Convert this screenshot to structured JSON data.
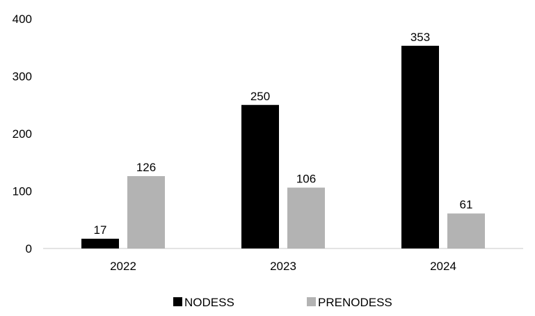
{
  "chart_data": {
    "type": "bar",
    "categories": [
      "2022",
      "2023",
      "2024"
    ],
    "series": [
      {
        "name": "NODESS",
        "values": [
          17,
          250,
          353
        ],
        "color": "#000000"
      },
      {
        "name": "PRENODESS",
        "values": [
          126,
          106,
          61
        ],
        "color": "#b3b3b3"
      }
    ],
    "ylim": [
      0,
      400
    ],
    "yticks": [
      0,
      100,
      200,
      300,
      400
    ],
    "grid": false,
    "data_labels": true,
    "legend_position": "bottom",
    "title": "",
    "xlabel": "",
    "ylabel": ""
  }
}
